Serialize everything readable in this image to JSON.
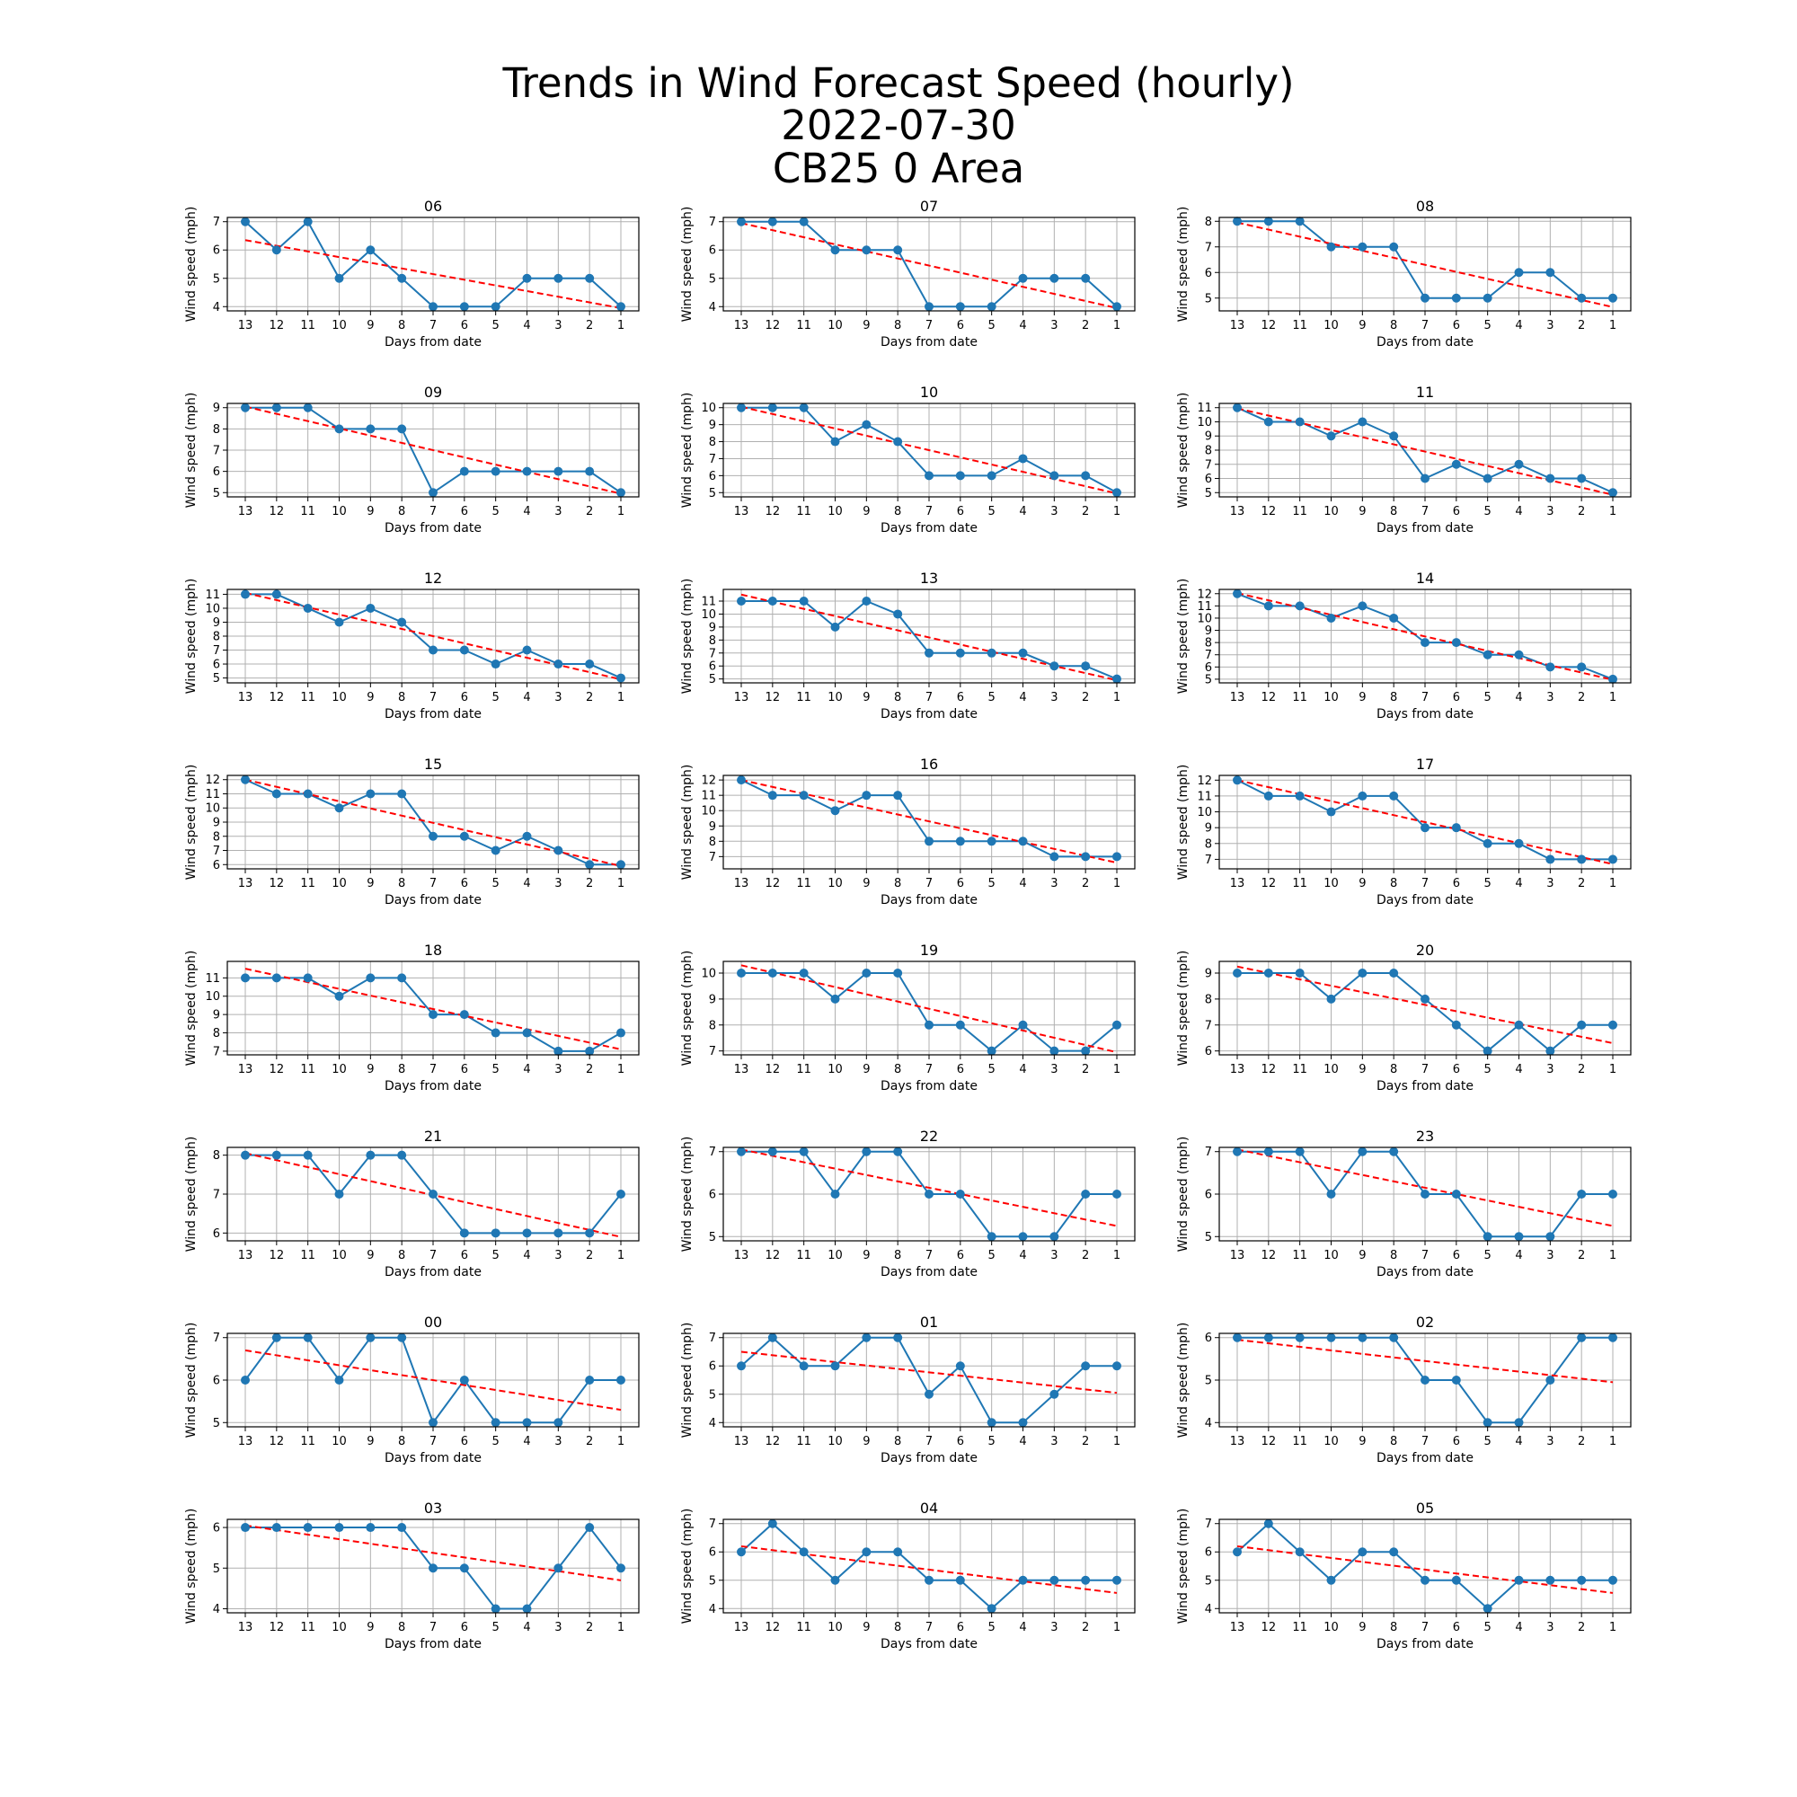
{
  "figure": {
    "title_lines": [
      "Trends in Wind Forecast Speed (hourly)",
      "2022-07-30",
      "CB25 0 Area"
    ]
  },
  "style": {
    "series_color": "#1f77b4",
    "trend_color": "#ff0000",
    "grid_color": "#b0b0b0",
    "axis_color": "#000000",
    "grid": true,
    "trend_style": "dashed"
  },
  "chart_data": [
    {
      "type": "line",
      "title": "06",
      "xlabel": "Days from date",
      "ylabel": "Wind speed (mph)",
      "categories": [
        "13",
        "12",
        "11",
        "10",
        "9",
        "8",
        "7",
        "6",
        "5",
        "4",
        "3",
        "2",
        "1"
      ],
      "values": [
        7,
        6,
        7,
        5,
        6,
        5,
        4,
        4,
        4,
        5,
        5,
        5,
        4
      ],
      "trend": [
        6.35,
        3.95
      ],
      "yticks": [
        4,
        5,
        6,
        7
      ],
      "ylim": [
        3.85,
        7.15
      ]
    },
    {
      "type": "line",
      "title": "07",
      "xlabel": "Days from date",
      "ylabel": "Wind speed (mph)",
      "categories": [
        "13",
        "12",
        "11",
        "10",
        "9",
        "8",
        "7",
        "6",
        "5",
        "4",
        "3",
        "2",
        "1"
      ],
      "values": [
        7,
        7,
        7,
        6,
        6,
        6,
        4,
        4,
        4,
        5,
        5,
        5,
        4
      ],
      "trend": [
        6.95,
        3.95
      ],
      "yticks": [
        4,
        5,
        6,
        7
      ],
      "ylim": [
        3.85,
        7.15
      ]
    },
    {
      "type": "line",
      "title": "08",
      "xlabel": "Days from date",
      "ylabel": "Wind speed (mph)",
      "categories": [
        "13",
        "12",
        "11",
        "10",
        "9",
        "8",
        "7",
        "6",
        "5",
        "4",
        "3",
        "2",
        "1"
      ],
      "values": [
        8,
        8,
        8,
        7,
        7,
        7,
        5,
        5,
        5,
        6,
        6,
        5,
        5
      ],
      "trend": [
        7.95,
        4.65
      ],
      "yticks": [
        5,
        6,
        7,
        8
      ],
      "ylim": [
        4.5,
        8.15
      ]
    },
    {
      "type": "line",
      "title": "09",
      "xlabel": "Days from date",
      "ylabel": "Wind speed (mph)",
      "categories": [
        "13",
        "12",
        "11",
        "10",
        "9",
        "8",
        "7",
        "6",
        "5",
        "4",
        "3",
        "2",
        "1"
      ],
      "values": [
        9,
        9,
        9,
        8,
        8,
        8,
        5,
        6,
        6,
        6,
        6,
        6,
        5
      ],
      "trend": [
        9.05,
        4.95
      ],
      "yticks": [
        5,
        6,
        7,
        8,
        9
      ],
      "ylim": [
        4.8,
        9.2
      ]
    },
    {
      "type": "line",
      "title": "10",
      "xlabel": "Days from date",
      "ylabel": "Wind speed (mph)",
      "categories": [
        "13",
        "12",
        "11",
        "10",
        "9",
        "8",
        "7",
        "6",
        "5",
        "4",
        "3",
        "2",
        "1"
      ],
      "values": [
        10,
        10,
        10,
        8,
        9,
        8,
        6,
        6,
        6,
        7,
        6,
        6,
        5
      ],
      "trend": [
        10.05,
        4.95
      ],
      "yticks": [
        5,
        6,
        7,
        8,
        9,
        10
      ],
      "ylim": [
        4.75,
        10.25
      ]
    },
    {
      "type": "line",
      "title": "11",
      "xlabel": "Days from date",
      "ylabel": "Wind speed (mph)",
      "categories": [
        "13",
        "12",
        "11",
        "10",
        "9",
        "8",
        "7",
        "6",
        "5",
        "4",
        "3",
        "2",
        "1"
      ],
      "values": [
        11,
        10,
        10,
        9,
        10,
        9,
        6,
        7,
        6,
        7,
        6,
        6,
        5
      ],
      "trend": [
        10.95,
        4.85
      ],
      "yticks": [
        5,
        6,
        7,
        8,
        9,
        10,
        11
      ],
      "ylim": [
        4.7,
        11.3
      ]
    },
    {
      "type": "line",
      "title": "12",
      "xlabel": "Days from date",
      "ylabel": "Wind speed (mph)",
      "categories": [
        "13",
        "12",
        "11",
        "10",
        "9",
        "8",
        "7",
        "6",
        "5",
        "4",
        "3",
        "2",
        "1"
      ],
      "values": [
        11,
        11,
        10,
        9,
        10,
        9,
        7,
        7,
        6,
        7,
        6,
        6,
        5
      ],
      "trend": [
        11.1,
        4.9
      ],
      "yticks": [
        5,
        6,
        7,
        8,
        9,
        10,
        11
      ],
      "ylim": [
        4.65,
        11.35
      ]
    },
    {
      "type": "line",
      "title": "13",
      "xlabel": "Days from date",
      "ylabel": "Wind speed (mph)",
      "categories": [
        "13",
        "12",
        "11",
        "10",
        "9",
        "8",
        "7",
        "6",
        "5",
        "4",
        "3",
        "2",
        "1"
      ],
      "values": [
        11,
        11,
        11,
        9,
        11,
        10,
        7,
        7,
        7,
        7,
        6,
        6,
        5
      ],
      "trend": [
        11.5,
        4.9
      ],
      "yticks": [
        5,
        6,
        7,
        8,
        9,
        10,
        11
      ],
      "ylim": [
        4.7,
        11.9
      ]
    },
    {
      "type": "line",
      "title": "14",
      "xlabel": "Days from date",
      "ylabel": "Wind speed (mph)",
      "categories": [
        "13",
        "12",
        "11",
        "10",
        "9",
        "8",
        "7",
        "6",
        "5",
        "4",
        "3",
        "2",
        "1"
      ],
      "values": [
        12,
        11,
        11,
        10,
        11,
        10,
        8,
        8,
        7,
        7,
        6,
        6,
        5
      ],
      "trend": [
        12.05,
        4.95
      ],
      "yticks": [
        5,
        6,
        7,
        8,
        9,
        10,
        11,
        12
      ],
      "ylim": [
        4.7,
        12.35
      ]
    },
    {
      "type": "line",
      "title": "15",
      "xlabel": "Days from date",
      "ylabel": "Wind speed (mph)",
      "categories": [
        "13",
        "12",
        "11",
        "10",
        "9",
        "8",
        "7",
        "6",
        "5",
        "4",
        "3",
        "2",
        "1"
      ],
      "values": [
        12,
        11,
        11,
        10,
        11,
        11,
        8,
        8,
        7,
        8,
        7,
        6,
        6
      ],
      "trend": [
        12.0,
        5.9
      ],
      "yticks": [
        6,
        7,
        8,
        9,
        10,
        11,
        12
      ],
      "ylim": [
        5.7,
        12.3
      ]
    },
    {
      "type": "line",
      "title": "16",
      "xlabel": "Days from date",
      "ylabel": "Wind speed (mph)",
      "categories": [
        "13",
        "12",
        "11",
        "10",
        "9",
        "8",
        "7",
        "6",
        "5",
        "4",
        "3",
        "2",
        "1"
      ],
      "values": [
        12,
        11,
        11,
        10,
        11,
        11,
        8,
        8,
        8,
        8,
        7,
        7,
        7
      ],
      "trend": [
        12.0,
        6.6
      ],
      "yticks": [
        7,
        8,
        9,
        10,
        11,
        12
      ],
      "ylim": [
        6.2,
        12.3
      ]
    },
    {
      "type": "line",
      "title": "17",
      "xlabel": "Days from date",
      "ylabel": "Wind speed (mph)",
      "categories": [
        "13",
        "12",
        "11",
        "10",
        "9",
        "8",
        "7",
        "6",
        "5",
        "4",
        "3",
        "2",
        "1"
      ],
      "values": [
        12,
        11,
        11,
        10,
        11,
        11,
        9,
        9,
        8,
        8,
        7,
        7,
        7
      ],
      "trend": [
        12.0,
        6.7
      ],
      "yticks": [
        7,
        8,
        9,
        10,
        11,
        12
      ],
      "ylim": [
        6.4,
        12.3
      ]
    },
    {
      "type": "line",
      "title": "18",
      "xlabel": "Days from date",
      "ylabel": "Wind speed (mph)",
      "categories": [
        "13",
        "12",
        "11",
        "10",
        "9",
        "8",
        "7",
        "6",
        "5",
        "4",
        "3",
        "2",
        "1"
      ],
      "values": [
        11,
        11,
        11,
        10,
        11,
        11,
        9,
        9,
        8,
        8,
        7,
        7,
        8
      ],
      "trend": [
        11.5,
        7.1
      ],
      "yticks": [
        7,
        8,
        9,
        10,
        11
      ],
      "ylim": [
        6.8,
        11.9
      ]
    },
    {
      "type": "line",
      "title": "19",
      "xlabel": "Days from date",
      "ylabel": "Wind speed (mph)",
      "categories": [
        "13",
        "12",
        "11",
        "10",
        "9",
        "8",
        "7",
        "6",
        "5",
        "4",
        "3",
        "2",
        "1"
      ],
      "values": [
        10,
        10,
        10,
        9,
        10,
        10,
        8,
        8,
        7,
        8,
        7,
        7,
        8
      ],
      "trend": [
        10.3,
        6.95
      ],
      "yticks": [
        7,
        8,
        9,
        10
      ],
      "ylim": [
        6.85,
        10.45
      ]
    },
    {
      "type": "line",
      "title": "20",
      "xlabel": "Days from date",
      "ylabel": "Wind speed (mph)",
      "categories": [
        "13",
        "12",
        "11",
        "10",
        "9",
        "8",
        "7",
        "6",
        "5",
        "4",
        "3",
        "2",
        "1"
      ],
      "values": [
        9,
        9,
        9,
        8,
        9,
        9,
        8,
        7,
        6,
        7,
        6,
        7,
        7
      ],
      "trend": [
        9.25,
        6.3
      ],
      "yticks": [
        6,
        7,
        8,
        9
      ],
      "ylim": [
        5.85,
        9.45
      ]
    },
    {
      "type": "line",
      "title": "21",
      "xlabel": "Days from date",
      "ylabel": "Wind speed (mph)",
      "categories": [
        "13",
        "12",
        "11",
        "10",
        "9",
        "8",
        "7",
        "6",
        "5",
        "4",
        "3",
        "2",
        "1"
      ],
      "values": [
        8,
        8,
        8,
        7,
        8,
        8,
        7,
        6,
        6,
        6,
        6,
        6,
        7
      ],
      "trend": [
        8.05,
        5.9
      ],
      "yticks": [
        6,
        7,
        8
      ],
      "ylim": [
        5.8,
        8.2
      ]
    },
    {
      "type": "line",
      "title": "22",
      "xlabel": "Days from date",
      "ylabel": "Wind speed (mph)",
      "categories": [
        "13",
        "12",
        "11",
        "10",
        "9",
        "8",
        "7",
        "6",
        "5",
        "4",
        "3",
        "2",
        "1"
      ],
      "values": [
        7,
        7,
        7,
        6,
        7,
        7,
        6,
        6,
        5,
        5,
        5,
        6,
        6
      ],
      "trend": [
        7.05,
        5.25
      ],
      "yticks": [
        5,
        6,
        7
      ],
      "ylim": [
        4.9,
        7.1
      ]
    },
    {
      "type": "line",
      "title": "23",
      "xlabel": "Days from date",
      "ylabel": "Wind speed (mph)",
      "categories": [
        "13",
        "12",
        "11",
        "10",
        "9",
        "8",
        "7",
        "6",
        "5",
        "4",
        "3",
        "2",
        "1"
      ],
      "values": [
        7,
        7,
        7,
        6,
        7,
        7,
        6,
        6,
        5,
        5,
        5,
        6,
        6
      ],
      "trend": [
        7.05,
        5.25
      ],
      "yticks": [
        5,
        6,
        7
      ],
      "ylim": [
        4.9,
        7.1
      ]
    },
    {
      "type": "line",
      "title": "00",
      "xlabel": "Days from date",
      "ylabel": "Wind speed (mph)",
      "categories": [
        "13",
        "12",
        "11",
        "10",
        "9",
        "8",
        "7",
        "6",
        "5",
        "4",
        "3",
        "2",
        "1"
      ],
      "values": [
        6,
        7,
        7,
        6,
        7,
        7,
        5,
        6,
        5,
        5,
        5,
        6,
        6
      ],
      "trend": [
        6.7,
        5.3
      ],
      "yticks": [
        5,
        6,
        7
      ],
      "ylim": [
        4.9,
        7.1
      ]
    },
    {
      "type": "line",
      "title": "01",
      "xlabel": "Days from date",
      "ylabel": "Wind speed (mph)",
      "categories": [
        "13",
        "12",
        "11",
        "10",
        "9",
        "8",
        "7",
        "6",
        "5",
        "4",
        "3",
        "2",
        "1"
      ],
      "values": [
        6,
        7,
        6,
        6,
        7,
        7,
        5,
        6,
        4,
        4,
        5,
        6,
        6
      ],
      "trend": [
        6.5,
        5.05
      ],
      "yticks": [
        4,
        5,
        6,
        7
      ],
      "ylim": [
        3.85,
        7.15
      ]
    },
    {
      "type": "line",
      "title": "02",
      "xlabel": "Days from date",
      "ylabel": "Wind speed (mph)",
      "categories": [
        "13",
        "12",
        "11",
        "10",
        "9",
        "8",
        "7",
        "6",
        "5",
        "4",
        "3",
        "2",
        "1"
      ],
      "values": [
        6,
        6,
        6,
        6,
        6,
        6,
        5,
        5,
        4,
        4,
        5,
        6,
        6
      ],
      "trend": [
        5.95,
        4.95
      ],
      "yticks": [
        4,
        5,
        6
      ],
      "ylim": [
        3.9,
        6.1
      ]
    },
    {
      "type": "line",
      "title": "03",
      "xlabel": "Days from date",
      "ylabel": "Wind speed (mph)",
      "categories": [
        "13",
        "12",
        "11",
        "10",
        "9",
        "8",
        "7",
        "6",
        "5",
        "4",
        "3",
        "2",
        "1"
      ],
      "values": [
        6,
        6,
        6,
        6,
        6,
        6,
        5,
        5,
        4,
        4,
        5,
        6,
        5
      ],
      "trend": [
        6.05,
        4.7
      ],
      "yticks": [
        4,
        5,
        6
      ],
      "ylim": [
        3.9,
        6.2
      ]
    },
    {
      "type": "line",
      "title": "04",
      "xlabel": "Days from date",
      "ylabel": "Wind speed (mph)",
      "categories": [
        "13",
        "12",
        "11",
        "10",
        "9",
        "8",
        "7",
        "6",
        "5",
        "4",
        "3",
        "2",
        "1"
      ],
      "values": [
        6,
        7,
        6,
        5,
        6,
        6,
        5,
        5,
        4,
        5,
        5,
        5,
        5
      ],
      "trend": [
        6.2,
        4.55
      ],
      "yticks": [
        4,
        5,
        6,
        7
      ],
      "ylim": [
        3.85,
        7.15
      ]
    },
    {
      "type": "line",
      "title": "05",
      "xlabel": "Days from date",
      "ylabel": "Wind speed (mph)",
      "categories": [
        "13",
        "12",
        "11",
        "10",
        "9",
        "8",
        "7",
        "6",
        "5",
        "4",
        "3",
        "2",
        "1"
      ],
      "values": [
        6,
        7,
        6,
        5,
        6,
        6,
        5,
        5,
        4,
        5,
        5,
        5,
        5
      ],
      "trend": [
        6.2,
        4.55
      ],
      "yticks": [
        4,
        5,
        6,
        7
      ],
      "ylim": [
        3.85,
        7.15
      ]
    }
  ]
}
